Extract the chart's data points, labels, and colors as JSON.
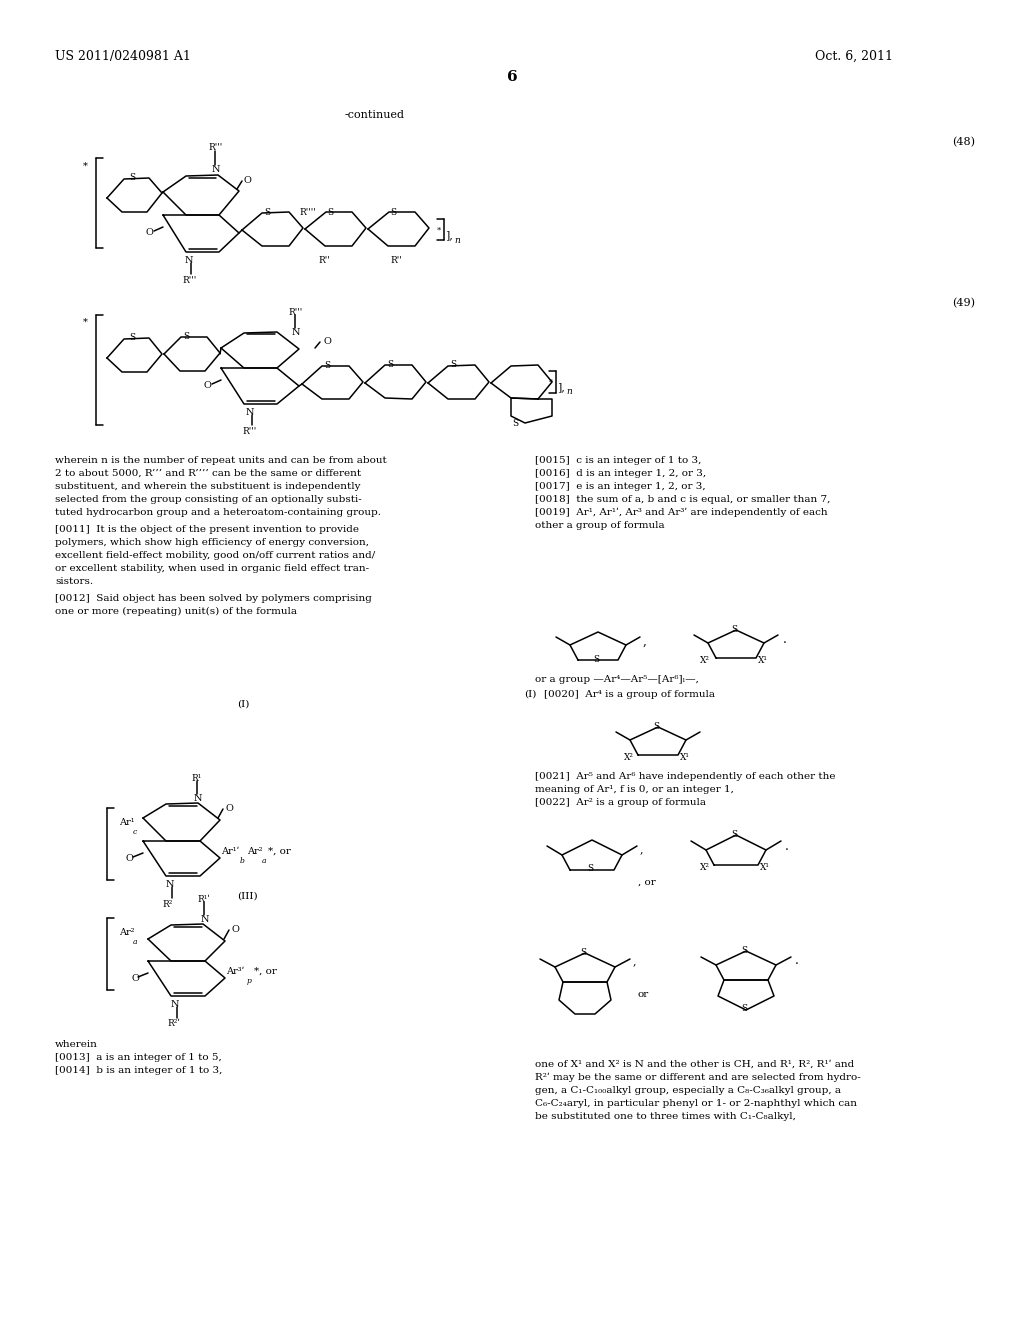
{
  "header_left": "US 2011/0240981 A1",
  "header_right": "Oct. 6, 2011",
  "page_num": "6",
  "continued": "-continued",
  "bg": "#ffffff",
  "left_col_lines": [
    "wherein n is the number of repeat units and can be from about",
    "2 to about 5000, R’’’ and R’’’’ can be the same or different",
    "substituent, and wherein the substituent is independently",
    "selected from the group consisting of an optionally substi-",
    "tuted hydrocarbon group and a heteroatom-containing group.",
    "[0011]  It is the object of the present invention to provide",
    "polymers, which show high efficiency of energy conversion,",
    "excellent field-effect mobility, good on/off current ratios and/",
    "or excellent stability, when used in organic field effect tran-",
    "sistors.",
    "[0012]  Said object has been solved by polymers comprising",
    "one or more (repeating) unit(s) of the formula"
  ],
  "right_col_lines": [
    "[0015]  c is an integer of 1 to 3,",
    "[0016]  d is an integer 1, 2, or 3,",
    "[0017]  e is an integer 1, 2, or 3,",
    "[0018]  the sum of a, b and c is equal, or smaller than 7,",
    "[0019]  Ar¹, Ar¹ʹ, Ar³ and Ar³ʹ are independently of each",
    "other a group of formula"
  ],
  "right_col_lines2": [
    "or a group —Ar⁴—Ar⁵—[Ar⁶]ₗ—,",
    "[0020]  Ar⁴ is a group of formula"
  ],
  "right_col_lines3": [
    "[0021]  Ar⁵ and Ar⁶ have independently of each other the",
    "meaning of Ar¹, f is 0, or an integer 1,",
    "[0022]  Ar² is a group of formula"
  ],
  "bottom_right": [
    "one of X¹ and X² is N and the other is CH, and R¹, R², R¹ʹ and",
    "R²ʹ may be the same or different and are selected from hydro-",
    "gen, a C₁-C₁₀₀alkyl group, especially a C₈-C₃₆alkyl group, a",
    "C₆-C₂₄aryl, in particular phenyl or 1- or 2-naphthyl which can",
    "be substituted one to three times with C₁-C₈alkyl,"
  ],
  "wherein_lines": [
    "wherein",
    "[0013]  a is an integer of 1 to 5,",
    "[0014]  b is an integer of 1 to 3,"
  ]
}
